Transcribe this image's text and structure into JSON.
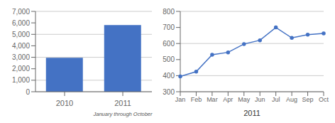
{
  "chart_data": [
    {
      "type": "bar",
      "categories": [
        "2010",
        "2011"
      ],
      "values": [
        2960,
        5800
      ],
      "color": "#4472c4",
      "annotation": "January through October",
      "ylim": [
        0,
        7000
      ],
      "yticks": [
        0,
        {
          "value": 1000,
          "label": "1,000"
        },
        {
          "value": 2000,
          "label": "2,000"
        },
        {
          "value": 3000,
          "label": "3,000"
        },
        {
          "value": 4000,
          "label": "4,000"
        },
        {
          "value": 5000,
          "label": "5,000"
        },
        {
          "value": 6000,
          "label": "6,000"
        },
        {
          "value": 7000,
          "label": "7,000"
        }
      ],
      "grid": true
    },
    {
      "type": "line",
      "categories": [
        "Jan",
        "Feb",
        "Mar",
        "Apr",
        "May",
        "Jun",
        "Jul",
        "Aug",
        "Sep",
        "Oct"
      ],
      "values": [
        395,
        425,
        530,
        545,
        597,
        620,
        700,
        635,
        655,
        663
      ],
      "color": "#4472c4",
      "marker": "circle",
      "xlabel": "2011",
      "ylim": [
        300,
        800
      ],
      "yticks": [
        300,
        400,
        500,
        600,
        700,
        800
      ],
      "grid": true
    }
  ]
}
